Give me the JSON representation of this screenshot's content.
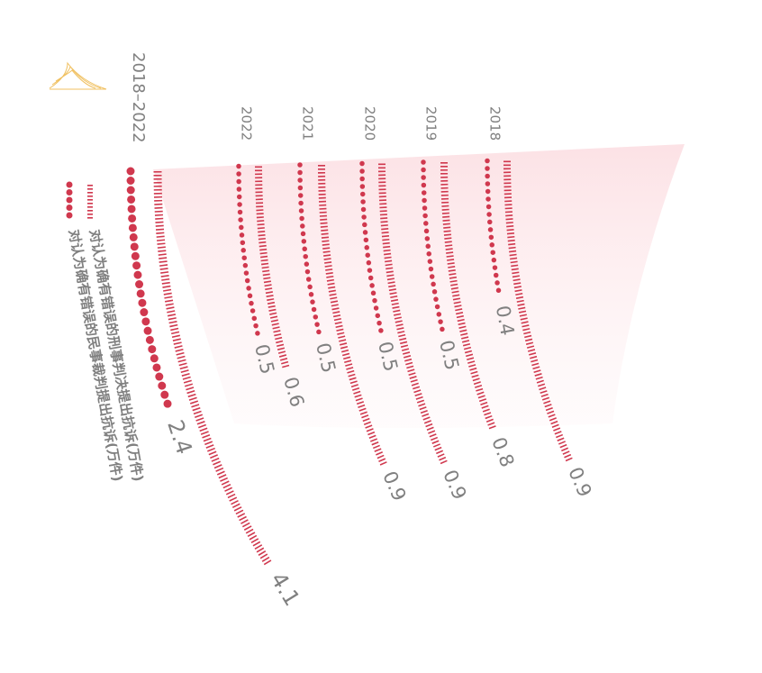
{
  "chart_data": {
    "type": "curved-bar",
    "categories": [
      "2018–2022",
      "2022",
      "2021",
      "2020",
      "2019",
      "2018"
    ],
    "series": [
      {
        "name": "对认为确有错误的刑事判决提出抗诉(万件)",
        "color": "#d0384e",
        "style": "dash",
        "values": [
          4.1,
          0.6,
          0.9,
          0.9,
          0.8,
          0.9
        ]
      },
      {
        "name": "对认为确有错误的民事裁判提出抗诉(万件)",
        "color": "#d0384e",
        "style": "dot",
        "values": [
          2.4,
          0.5,
          0.5,
          0.5,
          0.5,
          0.4
        ]
      }
    ]
  }
}
